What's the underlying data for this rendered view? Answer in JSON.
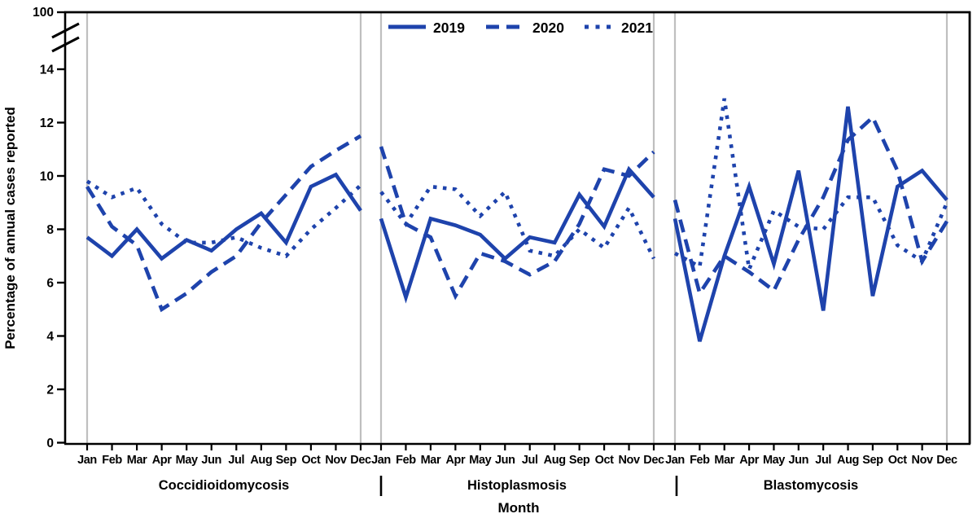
{
  "figure": {
    "y_axis_label": "Percentage of annual cases reported",
    "x_axis_label": "Month",
    "y_ticks": [
      0,
      2,
      4,
      6,
      8,
      10,
      12,
      14
    ],
    "y_break_top_label": "100"
  },
  "legend": {
    "items": [
      {
        "label": "2019",
        "style": "solid"
      },
      {
        "label": "2020",
        "style": "dashed"
      },
      {
        "label": "2021",
        "style": "dotted"
      }
    ]
  },
  "colors": {
    "line_blue": "#1e43ac",
    "panel_border_gray": "#bfbfbf",
    "axis_black": "#000000"
  },
  "chart_data": {
    "type": "line",
    "title": "",
    "xlabel": "Month",
    "ylabel": "Percentage of annual cases reported",
    "ylim": [
      0,
      14
    ],
    "y_axis_break_top": 100,
    "grid": "off",
    "legend_position": "top-center-inside",
    "months": [
      "Jan",
      "Feb",
      "Mar",
      "Apr",
      "May",
      "Jun",
      "Jul",
      "Aug",
      "Sep",
      "Oct",
      "Nov",
      "Dec"
    ],
    "panels": [
      {
        "label": "Coccidioidomycosis",
        "series": [
          {
            "name": "2019",
            "style": "solid",
            "values": [
              7.7,
              7.0,
              8.0,
              6.9,
              7.6,
              7.2,
              8.0,
              8.6,
              7.5,
              9.6,
              10.05,
              8.7
            ]
          },
          {
            "name": "2020",
            "style": "dashed",
            "values": [
              9.6,
              8.1,
              7.4,
              5.0,
              5.6,
              6.4,
              7.0,
              8.25,
              9.3,
              10.35,
              10.95,
              11.5
            ]
          },
          {
            "name": "2021",
            "style": "dotted",
            "values": [
              9.8,
              9.2,
              9.55,
              8.2,
              7.5,
              7.5,
              7.7,
              7.3,
              7.0,
              8.0,
              8.8,
              9.65
            ]
          }
        ]
      },
      {
        "label": "Histoplasmosis",
        "series": [
          {
            "name": "2019",
            "style": "solid",
            "values": [
              8.4,
              5.45,
              8.4,
              8.15,
              7.8,
              6.9,
              7.7,
              7.5,
              9.3,
              8.1,
              10.25,
              9.2
            ]
          },
          {
            "name": "2020",
            "style": "dashed",
            "values": [
              11.1,
              8.2,
              7.7,
              5.5,
              7.1,
              6.8,
              6.3,
              6.8,
              8.2,
              10.25,
              10.0,
              10.9
            ]
          },
          {
            "name": "2021",
            "style": "dotted",
            "values": [
              9.4,
              8.2,
              9.6,
              9.5,
              8.5,
              9.4,
              7.2,
              7.0,
              8.0,
              7.3,
              8.8,
              6.9
            ]
          }
        ]
      },
      {
        "label": "Blastomycosis",
        "series": [
          {
            "name": "2019",
            "style": "solid",
            "values": [
              8.4,
              3.8,
              7.0,
              9.6,
              6.7,
              10.2,
              4.95,
              12.6,
              5.5,
              9.6,
              10.2,
              9.1
            ]
          },
          {
            "name": "2020",
            "style": "dashed",
            "values": [
              9.1,
              5.6,
              7.0,
              6.4,
              5.7,
              7.6,
              9.2,
              11.35,
              12.2,
              10.2,
              6.8,
              8.3
            ]
          },
          {
            "name": "2021",
            "style": "dotted",
            "values": [
              7.1,
              6.6,
              12.9,
              6.5,
              8.7,
              8.1,
              8.0,
              9.2,
              9.2,
              7.4,
              6.8,
              9.0
            ]
          }
        ]
      }
    ]
  }
}
